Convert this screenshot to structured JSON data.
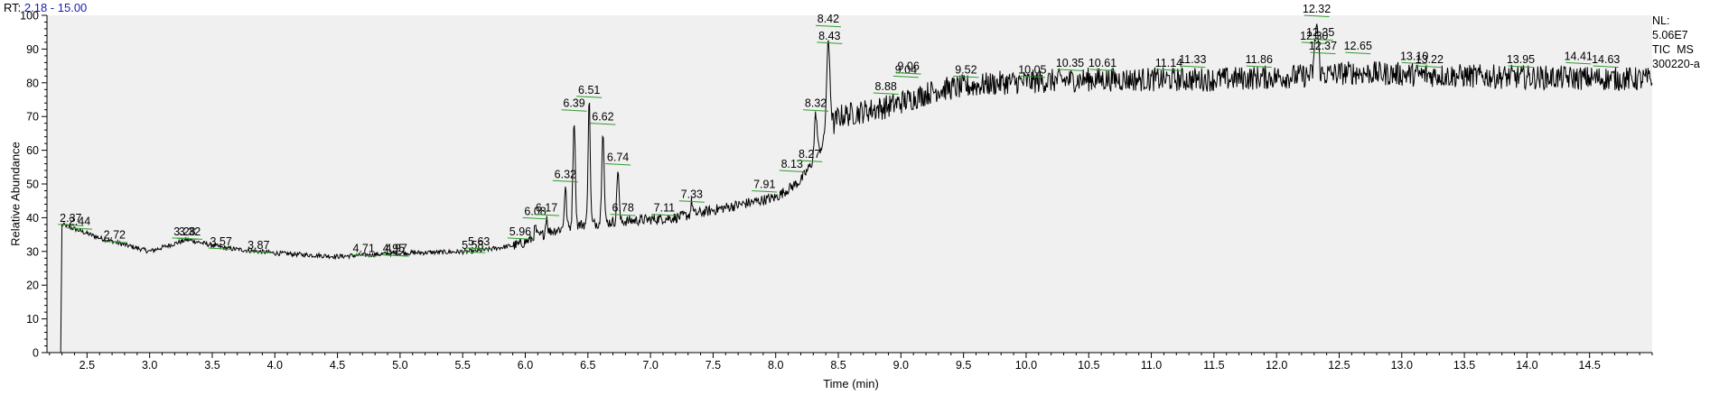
{
  "header": {
    "rt_label": "RT:",
    "rt_range": "2.18 - 15.00"
  },
  "info_lines": [
    "NL:",
    "5.06E7",
    "TIC  MS",
    "300220-a"
  ],
  "colors": {
    "background": "#f0f0f0",
    "trace": "#000000",
    "peak_marker": "#2e9a2e",
    "rt_value": "#1a1ab4"
  },
  "chart_data": {
    "type": "line",
    "xlabel": "Time (min)",
    "ylabel": "Relative Abundance",
    "xlim": [
      2.18,
      15.0
    ],
    "ylim": [
      0,
      100
    ],
    "x_ticks": [
      2.5,
      3.0,
      3.5,
      4.0,
      4.5,
      5.0,
      5.5,
      6.0,
      6.5,
      7.0,
      7.5,
      8.0,
      8.5,
      9.0,
      9.5,
      10.0,
      10.5,
      11.0,
      11.5,
      12.0,
      12.5,
      13.0,
      13.5,
      14.0,
      14.5
    ],
    "y_ticks": [
      0,
      10,
      20,
      30,
      40,
      50,
      60,
      70,
      80,
      90,
      100
    ],
    "grid": false,
    "legend": "none",
    "peaks": [
      {
        "rt": "2.37",
        "x": 2.37,
        "y": 38
      },
      {
        "rt": "2.44",
        "x": 2.44,
        "y": 37
      },
      {
        "rt": "2.72",
        "x": 2.72,
        "y": 33
      },
      {
        "rt": "3.28",
        "x": 3.28,
        "y": 34
      },
      {
        "rt": "3.32",
        "x": 3.32,
        "y": 34
      },
      {
        "rt": "3.57",
        "x": 3.57,
        "y": 31
      },
      {
        "rt": "3.87",
        "x": 3.87,
        "y": 30
      },
      {
        "rt": "4.71",
        "x": 4.71,
        "y": 29
      },
      {
        "rt": "4.95",
        "x": 4.95,
        "y": 29
      },
      {
        "rt": "4.97",
        "x": 4.97,
        "y": 29
      },
      {
        "rt": "5.58",
        "x": 5.58,
        "y": 30
      },
      {
        "rt": "5.63",
        "x": 5.63,
        "y": 31
      },
      {
        "rt": "5.96",
        "x": 5.96,
        "y": 34
      },
      {
        "rt": "6.08",
        "x": 6.08,
        "y": 40
      },
      {
        "rt": "6.17",
        "x": 6.17,
        "y": 41
      },
      {
        "rt": "6.32",
        "x": 6.32,
        "y": 51
      },
      {
        "rt": "6.39",
        "x": 6.39,
        "y": 72
      },
      {
        "rt": "6.51",
        "x": 6.51,
        "y": 76
      },
      {
        "rt": "6.62",
        "x": 6.62,
        "y": 68
      },
      {
        "rt": "6.74",
        "x": 6.74,
        "y": 56
      },
      {
        "rt": "6.78",
        "x": 6.78,
        "y": 41
      },
      {
        "rt": "7.11",
        "x": 7.11,
        "y": 41
      },
      {
        "rt": "7.33",
        "x": 7.33,
        "y": 45
      },
      {
        "rt": "7.91",
        "x": 7.91,
        "y": 48
      },
      {
        "rt": "8.13",
        "x": 8.13,
        "y": 54
      },
      {
        "rt": "8.27",
        "x": 8.27,
        "y": 57
      },
      {
        "rt": "8.32",
        "x": 8.32,
        "y": 72
      },
      {
        "rt": "8.42",
        "x": 8.42,
        "y": 97
      },
      {
        "rt": "8.43",
        "x": 8.43,
        "y": 92
      },
      {
        "rt": "8.88",
        "x": 8.88,
        "y": 77
      },
      {
        "rt": "9.04",
        "x": 9.04,
        "y": 82
      },
      {
        "rt": "9.06",
        "x": 9.06,
        "y": 83
      },
      {
        "rt": "9.52",
        "x": 9.52,
        "y": 82
      },
      {
        "rt": "10.05",
        "x": 10.05,
        "y": 82
      },
      {
        "rt": "10.35",
        "x": 10.35,
        "y": 84
      },
      {
        "rt": "10.61",
        "x": 10.61,
        "y": 84
      },
      {
        "rt": "11.14",
        "x": 11.14,
        "y": 84
      },
      {
        "rt": "11.33",
        "x": 11.33,
        "y": 85
      },
      {
        "rt": "11.86",
        "x": 11.86,
        "y": 85
      },
      {
        "rt": "12.30",
        "x": 12.3,
        "y": 92
      },
      {
        "rt": "12.32",
        "x": 12.32,
        "y": 100
      },
      {
        "rt": "12.35",
        "x": 12.35,
        "y": 93
      },
      {
        "rt": "12.37",
        "x": 12.37,
        "y": 89
      },
      {
        "rt": "12.65",
        "x": 12.65,
        "y": 89
      },
      {
        "rt": "13.10",
        "x": 13.1,
        "y": 86
      },
      {
        "rt": "13.22",
        "x": 13.22,
        "y": 85
      },
      {
        "rt": "13.95",
        "x": 13.95,
        "y": 85
      },
      {
        "rt": "14.41",
        "x": 14.41,
        "y": 86
      },
      {
        "rt": "14.63",
        "x": 14.63,
        "y": 85
      }
    ]
  }
}
